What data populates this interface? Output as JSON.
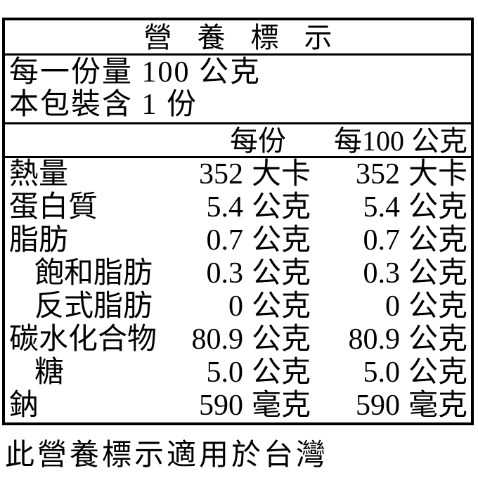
{
  "nutrition_label": {
    "title": "營養標示",
    "serving_info": {
      "serving_size_line": "每一份量 100 公克",
      "servings_per_package_line": "本包裝含 1 份"
    },
    "column_headers": {
      "per_serving": "每份",
      "per_100g": "每100 公克"
    },
    "rows": [
      {
        "name": "熱量",
        "indent": false,
        "per_serving": {
          "value": "352",
          "unit": "大卡"
        },
        "per_100g": {
          "value": "352",
          "unit": "大卡"
        }
      },
      {
        "name": "蛋白質",
        "indent": false,
        "per_serving": {
          "value": "5.4",
          "unit": "公克"
        },
        "per_100g": {
          "value": "5.4",
          "unit": "公克"
        }
      },
      {
        "name": "脂肪",
        "indent": false,
        "per_serving": {
          "value": "0.7",
          "unit": "公克"
        },
        "per_100g": {
          "value": "0.7",
          "unit": "公克"
        }
      },
      {
        "name": "飽和脂肪",
        "indent": true,
        "per_serving": {
          "value": "0.3",
          "unit": "公克"
        },
        "per_100g": {
          "value": "0.3",
          "unit": "公克"
        }
      },
      {
        "name": "反式脂肪",
        "indent": true,
        "per_serving": {
          "value": "0",
          "unit": "公克"
        },
        "per_100g": {
          "value": "0",
          "unit": "公克"
        }
      },
      {
        "name": "碳水化合物",
        "indent": false,
        "per_serving": {
          "value": "80.9",
          "unit": "公克"
        },
        "per_100g": {
          "value": "80.9",
          "unit": "公克"
        }
      },
      {
        "name": "糖",
        "indent": true,
        "per_serving": {
          "value": "5.0",
          "unit": "公克"
        },
        "per_100g": {
          "value": "5.0",
          "unit": "公克"
        }
      },
      {
        "name": "鈉",
        "indent": false,
        "per_serving": {
          "value": "590",
          "unit": "毫克"
        },
        "per_100g": {
          "value": "590",
          "unit": "毫克"
        }
      }
    ],
    "footnote": "此營養標示適用於台灣",
    "colors": {
      "text": "#000000",
      "border": "#000000",
      "background": "#ffffff"
    }
  }
}
